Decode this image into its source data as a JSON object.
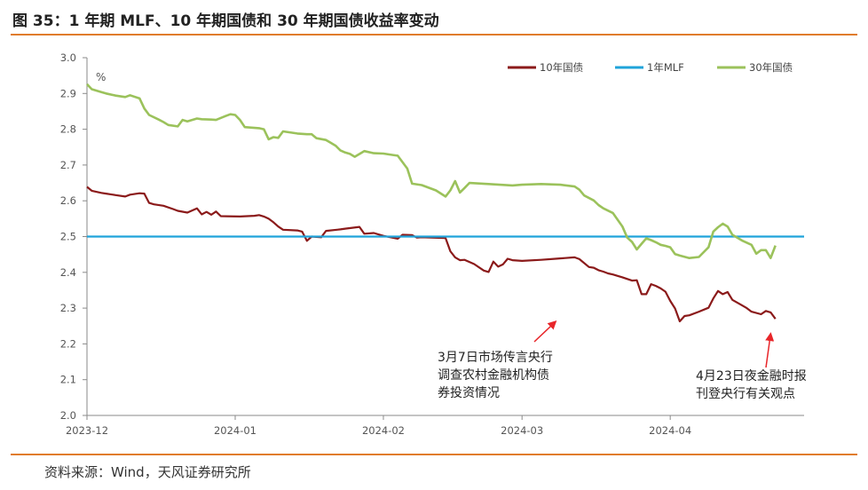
{
  "figure": {
    "title": "图 35：1 年期 MLF、10 年期国债和 30 年期国债收益率变动",
    "source": "资料来源：Wind，天风证券研究所"
  },
  "colors": {
    "accent_rule": "#e07c2c",
    "series_10y": "#8b1a1a",
    "series_mlf": "#1fa3da",
    "series_30y": "#9bc25b",
    "arrow": "#e8262a"
  },
  "chart_data": {
    "type": "line",
    "unit_label": "%",
    "ylim": [
      2.0,
      3.0
    ],
    "yticks": [
      "3.0",
      "2.9",
      "2.8",
      "2.7",
      "2.6",
      "2.5",
      "2.4",
      "2.3",
      "2.2",
      "2.1",
      "2.0"
    ],
    "ytick_values": [
      3.0,
      2.9,
      2.8,
      2.7,
      2.6,
      2.5,
      2.4,
      2.3,
      2.2,
      2.1,
      2.0
    ],
    "xlim": [
      "2023-12-01",
      "2024-04-29"
    ],
    "xticks": [
      {
        "date": "2023-12-01",
        "label": "2023-12"
      },
      {
        "date": "2024-01-01",
        "label": "2024-01"
      },
      {
        "date": "2024-02-01",
        "label": "2024-02"
      },
      {
        "date": "2024-03-01",
        "label": "2024-03"
      },
      {
        "date": "2024-04-01",
        "label": "2024-04"
      }
    ],
    "legend_position": "top-right",
    "grid": false,
    "series": [
      {
        "name": "10年国债",
        "color": "#8b1a1a",
        "points": [
          [
            "2023-12-01",
            2.639
          ],
          [
            "2023-12-02",
            2.628
          ],
          [
            "2023-12-04",
            2.622
          ],
          [
            "2023-12-05",
            2.62
          ],
          [
            "2023-12-07",
            2.616
          ],
          [
            "2023-12-09",
            2.612
          ],
          [
            "2023-12-10",
            2.617
          ],
          [
            "2023-12-12",
            2.621
          ],
          [
            "2023-12-13",
            2.62
          ],
          [
            "2023-12-14",
            2.594
          ],
          [
            "2023-12-15",
            2.59
          ],
          [
            "2023-12-17",
            2.586
          ],
          [
            "2023-12-19",
            2.577
          ],
          [
            "2023-12-20",
            2.572
          ],
          [
            "2023-12-22",
            2.567
          ],
          [
            "2023-12-24",
            2.579
          ],
          [
            "2023-12-25",
            2.562
          ],
          [
            "2023-12-26",
            2.569
          ],
          [
            "2023-12-27",
            2.561
          ],
          [
            "2023-12-28",
            2.57
          ],
          [
            "2023-12-29",
            2.557
          ],
          [
            "2024-01-02",
            2.556
          ],
          [
            "2024-01-05",
            2.558
          ],
          [
            "2024-01-06",
            2.56
          ],
          [
            "2024-01-07",
            2.556
          ],
          [
            "2024-01-08",
            2.55
          ],
          [
            "2024-01-09",
            2.54
          ],
          [
            "2024-01-10",
            2.528
          ],
          [
            "2024-01-11",
            2.519
          ],
          [
            "2024-01-14",
            2.517
          ],
          [
            "2024-01-15",
            2.514
          ],
          [
            "2024-01-16",
            2.488
          ],
          [
            "2024-01-17",
            2.5
          ],
          [
            "2024-01-19",
            2.498
          ],
          [
            "2024-01-20",
            2.516
          ],
          [
            "2024-01-23",
            2.52
          ],
          [
            "2024-01-24",
            2.522
          ],
          [
            "2024-01-27",
            2.527
          ],
          [
            "2024-01-28",
            2.508
          ],
          [
            "2024-01-30",
            2.51
          ],
          [
            "2024-02-01",
            2.502
          ],
          [
            "2024-02-04",
            2.494
          ],
          [
            "2024-02-05",
            2.505
          ],
          [
            "2024-02-07",
            2.504
          ],
          [
            "2024-02-08",
            2.497
          ],
          [
            "2024-02-09",
            2.498
          ],
          [
            "2024-02-14",
            2.496
          ],
          [
            "2024-02-15",
            2.459
          ],
          [
            "2024-02-16",
            2.442
          ],
          [
            "2024-02-17",
            2.434
          ],
          [
            "2024-02-18",
            2.435
          ],
          [
            "2024-02-20",
            2.423
          ],
          [
            "2024-02-22",
            2.405
          ],
          [
            "2024-02-23",
            2.401
          ],
          [
            "2024-02-24",
            2.43
          ],
          [
            "2024-02-25",
            2.416
          ],
          [
            "2024-02-26",
            2.422
          ],
          [
            "2024-02-27",
            2.438
          ],
          [
            "2024-02-28",
            2.434
          ],
          [
            "2024-03-01",
            2.432
          ],
          [
            "2024-03-05",
            2.435
          ],
          [
            "2024-03-08",
            2.438
          ],
          [
            "2024-03-12",
            2.442
          ],
          [
            "2024-03-13",
            2.437
          ],
          [
            "2024-03-15",
            2.415
          ],
          [
            "2024-03-16",
            2.413
          ],
          [
            "2024-03-17",
            2.406
          ],
          [
            "2024-03-18",
            2.402
          ],
          [
            "2024-03-19",
            2.397
          ],
          [
            "2024-03-20",
            2.394
          ],
          [
            "2024-03-22",
            2.386
          ],
          [
            "2024-03-24",
            2.377
          ],
          [
            "2024-03-25",
            2.378
          ],
          [
            "2024-03-26",
            2.339
          ],
          [
            "2024-03-27",
            2.339
          ],
          [
            "2024-03-28",
            2.367
          ],
          [
            "2024-03-29",
            2.362
          ],
          [
            "2024-03-30",
            2.355
          ],
          [
            "2024-03-31",
            2.346
          ],
          [
            "2024-04-01",
            2.32
          ],
          [
            "2024-04-02",
            2.299
          ],
          [
            "2024-04-03",
            2.263
          ],
          [
            "2024-04-04",
            2.278
          ],
          [
            "2024-04-05",
            2.28
          ],
          [
            "2024-04-07",
            2.29
          ],
          [
            "2024-04-09",
            2.301
          ],
          [
            "2024-04-10",
            2.327
          ],
          [
            "2024-04-11",
            2.348
          ],
          [
            "2024-04-12",
            2.339
          ],
          [
            "2024-04-13",
            2.345
          ],
          [
            "2024-04-14",
            2.323
          ],
          [
            "2024-04-16",
            2.308
          ],
          [
            "2024-04-17",
            2.3
          ],
          [
            "2024-04-18",
            2.29
          ],
          [
            "2024-04-20",
            2.283
          ],
          [
            "2024-04-21",
            2.292
          ],
          [
            "2024-04-22",
            2.288
          ],
          [
            "2024-04-23",
            2.27
          ]
        ]
      },
      {
        "name": "1年MLF",
        "color": "#1fa3da",
        "points": [
          [
            "2023-12-01",
            2.5
          ],
          [
            "2024-04-29",
            2.5
          ]
        ]
      },
      {
        "name": "30年国债",
        "color": "#9bc25b",
        "points": [
          [
            "2023-12-01",
            2.926
          ],
          [
            "2023-12-02",
            2.912
          ],
          [
            "2023-12-04",
            2.904
          ],
          [
            "2023-12-05",
            2.9
          ],
          [
            "2023-12-07",
            2.894
          ],
          [
            "2023-12-09",
            2.89
          ],
          [
            "2023-12-10",
            2.895
          ],
          [
            "2023-12-12",
            2.886
          ],
          [
            "2023-12-13",
            2.858
          ],
          [
            "2023-12-14",
            2.84
          ],
          [
            "2023-12-16",
            2.827
          ],
          [
            "2023-12-17",
            2.82
          ],
          [
            "2023-12-18",
            2.812
          ],
          [
            "2023-12-20",
            2.808
          ],
          [
            "2023-12-21",
            2.826
          ],
          [
            "2023-12-22",
            2.822
          ],
          [
            "2023-12-24",
            2.83
          ],
          [
            "2023-12-25",
            2.828
          ],
          [
            "2023-12-27",
            2.827
          ],
          [
            "2023-12-28",
            2.826
          ],
          [
            "2023-12-30",
            2.837
          ],
          [
            "2023-12-31",
            2.842
          ],
          [
            "2024-01-01",
            2.84
          ],
          [
            "2024-01-02",
            2.826
          ],
          [
            "2024-01-03",
            2.806
          ],
          [
            "2024-01-06",
            2.803
          ],
          [
            "2024-01-07",
            2.8
          ],
          [
            "2024-01-08",
            2.772
          ],
          [
            "2024-01-09",
            2.778
          ],
          [
            "2024-01-10",
            2.776
          ],
          [
            "2024-01-11",
            2.794
          ],
          [
            "2024-01-14",
            2.788
          ],
          [
            "2024-01-16",
            2.786
          ],
          [
            "2024-01-17",
            2.786
          ],
          [
            "2024-01-18",
            2.775
          ],
          [
            "2024-01-20",
            2.77
          ],
          [
            "2024-01-21",
            2.762
          ],
          [
            "2024-01-22",
            2.754
          ],
          [
            "2024-01-23",
            2.741
          ],
          [
            "2024-01-24",
            2.735
          ],
          [
            "2024-01-25",
            2.731
          ],
          [
            "2024-01-26",
            2.723
          ],
          [
            "2024-01-28",
            2.739
          ],
          [
            "2024-01-30",
            2.733
          ],
          [
            "2024-02-01",
            2.732
          ],
          [
            "2024-02-03",
            2.728
          ],
          [
            "2024-02-04",
            2.726
          ],
          [
            "2024-02-06",
            2.69
          ],
          [
            "2024-02-07",
            2.648
          ],
          [
            "2024-02-09",
            2.644
          ],
          [
            "2024-02-10",
            2.639
          ],
          [
            "2024-02-12",
            2.629
          ],
          [
            "2024-02-14",
            2.612
          ],
          [
            "2024-02-15",
            2.629
          ],
          [
            "2024-02-16",
            2.655
          ],
          [
            "2024-02-17",
            2.623
          ],
          [
            "2024-02-18",
            2.636
          ],
          [
            "2024-02-19",
            2.65
          ],
          [
            "2024-02-23",
            2.647
          ],
          [
            "2024-02-28",
            2.643
          ],
          [
            "2024-03-01",
            2.645
          ],
          [
            "2024-03-05",
            2.647
          ],
          [
            "2024-03-09",
            2.645
          ],
          [
            "2024-03-12",
            2.64
          ],
          [
            "2024-03-13",
            2.631
          ],
          [
            "2024-03-14",
            2.615
          ],
          [
            "2024-03-16",
            2.601
          ],
          [
            "2024-03-17",
            2.588
          ],
          [
            "2024-03-18",
            2.579
          ],
          [
            "2024-03-20",
            2.566
          ],
          [
            "2024-03-22",
            2.528
          ],
          [
            "2024-03-23",
            2.497
          ],
          [
            "2024-03-24",
            2.485
          ],
          [
            "2024-03-25",
            2.464
          ],
          [
            "2024-03-26",
            2.48
          ],
          [
            "2024-03-27",
            2.495
          ],
          [
            "2024-03-28",
            2.49
          ],
          [
            "2024-03-29",
            2.484
          ],
          [
            "2024-03-30",
            2.477
          ],
          [
            "2024-03-31",
            2.474
          ],
          [
            "2024-04-01",
            2.47
          ],
          [
            "2024-04-02",
            2.451
          ],
          [
            "2024-04-03",
            2.447
          ],
          [
            "2024-04-05",
            2.44
          ],
          [
            "2024-04-07",
            2.443
          ],
          [
            "2024-04-09",
            2.47
          ],
          [
            "2024-04-10",
            2.514
          ],
          [
            "2024-04-11",
            2.526
          ],
          [
            "2024-04-12",
            2.536
          ],
          [
            "2024-04-13",
            2.528
          ],
          [
            "2024-04-14",
            2.505
          ],
          [
            "2024-04-16",
            2.489
          ],
          [
            "2024-04-18",
            2.477
          ],
          [
            "2024-04-19",
            2.452
          ],
          [
            "2024-04-20",
            2.462
          ],
          [
            "2024-04-21",
            2.462
          ],
          [
            "2024-04-22",
            2.44
          ],
          [
            "2024-04-23",
            2.475
          ]
        ]
      }
    ],
    "annotations": [
      {
        "id": "annotation-march7",
        "lines": [
          "3月7日市场传言央行",
          "调查农村金融机构债",
          "券投资情况"
        ],
        "point": [
          "2024-03-08",
          2.262
        ],
        "arrow_color": "#e8262a"
      },
      {
        "id": "annotation-april23",
        "lines": [
          "4月23日夜金融时报",
          "刊登央行有关观点"
        ],
        "point": [
          "2024-04-22",
          2.228
        ],
        "arrow_color": "#e8262a"
      }
    ]
  }
}
